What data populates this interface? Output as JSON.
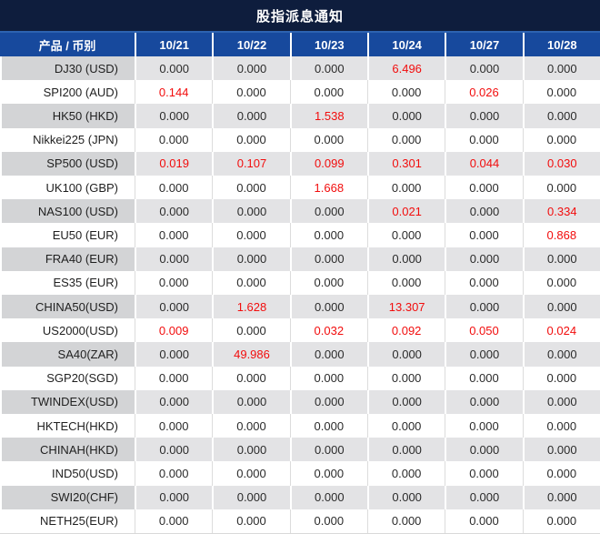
{
  "chart_data": {
    "type": "table",
    "title": "股指派息通知",
    "columns": [
      "产品 / 币别",
      "10/21",
      "10/22",
      "10/23",
      "10/24",
      "10/27",
      "10/28"
    ],
    "zero_value": "0.000",
    "rows": [
      {
        "label": "DJ30 (USD)",
        "values": [
          "0.000",
          "0.000",
          "0.000",
          "6.496",
          "0.000",
          "0.000"
        ]
      },
      {
        "label": "SPI200 (AUD)",
        "values": [
          "0.144",
          "0.000",
          "0.000",
          "0.000",
          "0.026",
          "0.000"
        ]
      },
      {
        "label": "HK50 (HKD)",
        "values": [
          "0.000",
          "0.000",
          "1.538",
          "0.000",
          "0.000",
          "0.000"
        ]
      },
      {
        "label": "Nikkei225 (JPN)",
        "values": [
          "0.000",
          "0.000",
          "0.000",
          "0.000",
          "0.000",
          "0.000"
        ]
      },
      {
        "label": "SP500 (USD)",
        "values": [
          "0.019",
          "0.107",
          "0.099",
          "0.301",
          "0.044",
          "0.030"
        ]
      },
      {
        "label": "UK100 (GBP)",
        "values": [
          "0.000",
          "0.000",
          "1.668",
          "0.000",
          "0.000",
          "0.000"
        ]
      },
      {
        "label": "NAS100 (USD)",
        "values": [
          "0.000",
          "0.000",
          "0.000",
          "0.021",
          "0.000",
          "0.334"
        ]
      },
      {
        "label": "EU50 (EUR)",
        "values": [
          "0.000",
          "0.000",
          "0.000",
          "0.000",
          "0.000",
          "0.868"
        ]
      },
      {
        "label": "FRA40 (EUR)",
        "values": [
          "0.000",
          "0.000",
          "0.000",
          "0.000",
          "0.000",
          "0.000"
        ]
      },
      {
        "label": "ES35 (EUR)",
        "values": [
          "0.000",
          "0.000",
          "0.000",
          "0.000",
          "0.000",
          "0.000"
        ]
      },
      {
        "label": "CHINA50(USD)",
        "values": [
          "0.000",
          "1.628",
          "0.000",
          "13.307",
          "0.000",
          "0.000"
        ]
      },
      {
        "label": "US2000(USD)",
        "values": [
          "0.009",
          "0.000",
          "0.032",
          "0.092",
          "0.050",
          "0.024"
        ]
      },
      {
        "label": "SA40(ZAR)",
        "values": [
          "0.000",
          "49.986",
          "0.000",
          "0.000",
          "0.000",
          "0.000"
        ]
      },
      {
        "label": "SGP20(SGD)",
        "values": [
          "0.000",
          "0.000",
          "0.000",
          "0.000",
          "0.000",
          "0.000"
        ]
      },
      {
        "label": "TWINDEX(USD)",
        "values": [
          "0.000",
          "0.000",
          "0.000",
          "0.000",
          "0.000",
          "0.000"
        ]
      },
      {
        "label": "HKTECH(HKD)",
        "values": [
          "0.000",
          "0.000",
          "0.000",
          "0.000",
          "0.000",
          "0.000"
        ]
      },
      {
        "label": "CHINAH(HKD)",
        "values": [
          "0.000",
          "0.000",
          "0.000",
          "0.000",
          "0.000",
          "0.000"
        ]
      },
      {
        "label": "IND50(USD)",
        "values": [
          "0.000",
          "0.000",
          "0.000",
          "0.000",
          "0.000",
          "0.000"
        ]
      },
      {
        "label": "SWI20(CHF)",
        "values": [
          "0.000",
          "0.000",
          "0.000",
          "0.000",
          "0.000",
          "0.000"
        ]
      },
      {
        "label": "NETH25(EUR)",
        "values": [
          "0.000",
          "0.000",
          "0.000",
          "0.000",
          "0.000",
          "0.000"
        ]
      }
    ],
    "layout": {
      "highlight_rule": "non-zero values shown in red",
      "row_banding": "odd rows gray, even rows white",
      "legend": "none",
      "grid": "column separators only"
    }
  },
  "colors": {
    "title_bg": "#0e1d3d",
    "title_divider": "#2d62b0",
    "header_bg": "#17499d",
    "header_text": "#ffffff",
    "row_gray_label": "#d3d4d6",
    "row_gray_value": "#e3e3e5",
    "value_text": "#2b2b2b",
    "highlight_red": "#f20d0d"
  }
}
